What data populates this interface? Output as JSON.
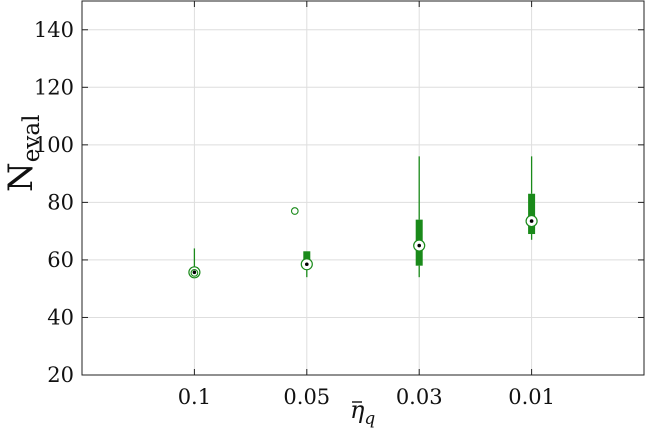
{
  "chart_data": {
    "type": "boxplot",
    "categories": [
      "0.1",
      "0.05",
      "0.03",
      "0.01"
    ],
    "y_ticks": [
      "20",
      "40",
      "60",
      "80",
      "100",
      "120",
      "140"
    ],
    "ylim": [
      20,
      150
    ],
    "grid": true,
    "color": "#1a8a1a",
    "ylabel": {
      "main": "N",
      "sub": "eval"
    },
    "xlabel": {
      "main": "η",
      "sub": "q"
    },
    "boxes": [
      {
        "category": "0.1",
        "whisker_low": 55,
        "q1": 55.5,
        "median": 55.7,
        "q3": 57.5,
        "whisker_high": 64,
        "outliers": [
          55.5
        ]
      },
      {
        "category": "0.05",
        "whisker_low": 54,
        "q1": 57.5,
        "median": 58.5,
        "q3": 63,
        "whisker_high": 63,
        "outliers": [
          77
        ]
      },
      {
        "category": "0.03",
        "whisker_low": 54,
        "q1": 58,
        "median": 65,
        "q3": 74,
        "whisker_high": 96,
        "outliers": []
      },
      {
        "category": "0.01",
        "whisker_low": 67,
        "q1": 69,
        "median": 73.5,
        "q3": 83,
        "whisker_high": 96,
        "outliers": []
      }
    ]
  }
}
